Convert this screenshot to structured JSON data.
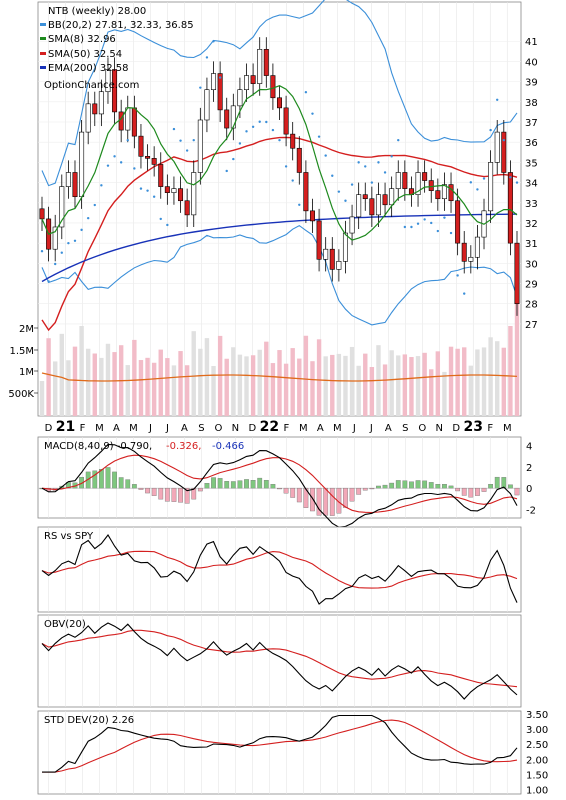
{
  "colors": {
    "bb": "#3b8fd9",
    "sma8": "#1e8a1e",
    "sma50": "#d41f1f",
    "ema200": "#1832b8",
    "psar": "#3b8fd9",
    "upper_lower_yellow": "#e6e61a",
    "vol_up": "#e0e0e0",
    "vol_down": "#f2bcc8",
    "vol_ma": "#e06a1a",
    "candle_up": "#ffffff",
    "candle_down": "#d41f1f",
    "macd_line": "#000000",
    "signal_line": "#d41f1f",
    "hist_pos": "#7fc77f",
    "hist_neg": "#f2a8b8"
  },
  "legend": {
    "title": "NTB (weekly) 28.00",
    "bb": "BB(20,2) 27.81, 32.33, 36.85",
    "sma8": "SMA(8) 32.96",
    "sma50": "SMA(50) 32.54",
    "ema200": "EMA(200) 32.58",
    "site": "OptionChance.com"
  },
  "chart_data": [
    {
      "type": "candlestick",
      "panel": "price",
      "title": "NTB (weekly) 28.00",
      "y_ticks": [
        "27",
        "28",
        "29",
        "30",
        "31",
        "32",
        "33",
        "34",
        "35",
        "36",
        "37",
        "38",
        "39",
        "40",
        "41"
      ],
      "ylim": [
        26.5,
        42.3
      ],
      "x_labels": [
        "D",
        "21",
        "F",
        "M",
        "A",
        "M",
        "J",
        "J",
        "A",
        "S",
        "O",
        "N",
        "D",
        "22",
        "F",
        "M",
        "A",
        "M",
        "J",
        "J",
        "A",
        "S",
        "O",
        "N",
        "D",
        "23",
        "F",
        "M"
      ],
      "close": [
        32.2,
        30.7,
        31.8,
        33.8,
        34.5,
        33.3,
        36.5,
        37.9,
        37.4,
        38.5,
        39.6,
        37.5,
        36.6,
        37.7,
        36.3,
        35.3,
        35.2,
        34.9,
        33.8,
        33.5,
        33.7,
        33.1,
        32.4,
        34.5,
        37.1,
        38.6,
        39.4,
        37.6,
        36.7,
        37.8,
        38.6,
        39.3,
        38.9,
        40.6,
        39.3,
        38.2,
        37.7,
        36.4,
        35.7,
        34.5,
        32.6,
        32.1,
        30.2,
        30.7,
        29.7,
        30.1,
        31.5,
        32.3,
        33.4,
        33.2,
        32.4,
        33.4,
        32.9,
        33.7,
        34.5,
        33.7,
        33.4,
        34.5,
        34.1,
        33.6,
        33.2,
        33.9,
        33.1,
        31.0,
        30.1,
        30.3,
        31.3,
        32.6,
        35.0,
        36.5,
        34.5,
        31.0,
        28.0
      ],
      "volume_ticks": [
        "500K",
        "1M",
        "1.5M",
        "2M"
      ],
      "volume_ma_note": "orange moving average line"
    },
    {
      "type": "line",
      "panel": "macd",
      "title": "MACD(8,40,9)",
      "values_label": [
        "-0.790,",
        "-0.326,",
        "-0.466"
      ],
      "y_ticks": [
        "4",
        "2",
        "0",
        "-2"
      ],
      "ylim": [
        -2.8,
        4.8
      ]
    },
    {
      "type": "line",
      "panel": "rs",
      "title": "RS vs SPY"
    },
    {
      "type": "line",
      "panel": "obv",
      "title": "OBV(20)"
    },
    {
      "type": "line",
      "panel": "std",
      "title": "STD DEV(20) 2.26",
      "y_ticks": [
        "1.00",
        "1.50",
        "2.00",
        "2.50",
        "3.00",
        "3.50"
      ],
      "ylim": [
        0.85,
        3.6
      ]
    }
  ]
}
